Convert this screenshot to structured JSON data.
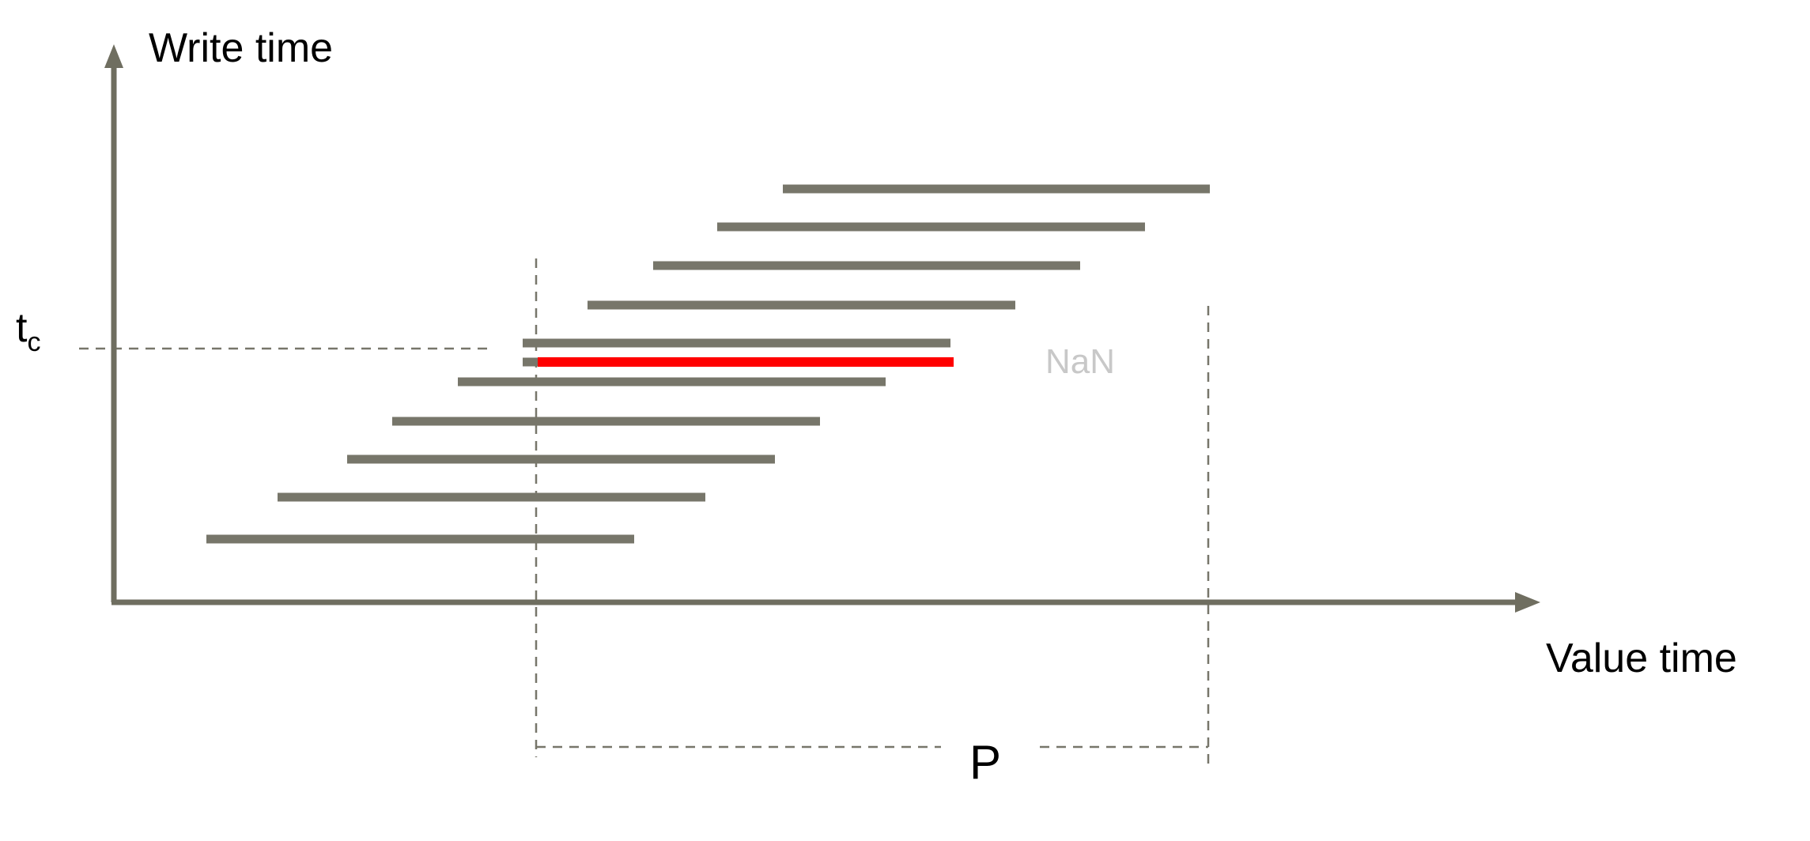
{
  "axes": {
    "y_label": "Write time",
    "x_label": "Value time",
    "color": "#6f6e60"
  },
  "tc_label": {
    "main": "t",
    "sub": "c"
  },
  "nan_label": "NaN",
  "period_label": "P",
  "colors": {
    "bar": "#77766a",
    "highlight": "#ff0000",
    "dashed": "#77766a",
    "nan_text": "#c8c8c8"
  },
  "bars_count_note": null
}
